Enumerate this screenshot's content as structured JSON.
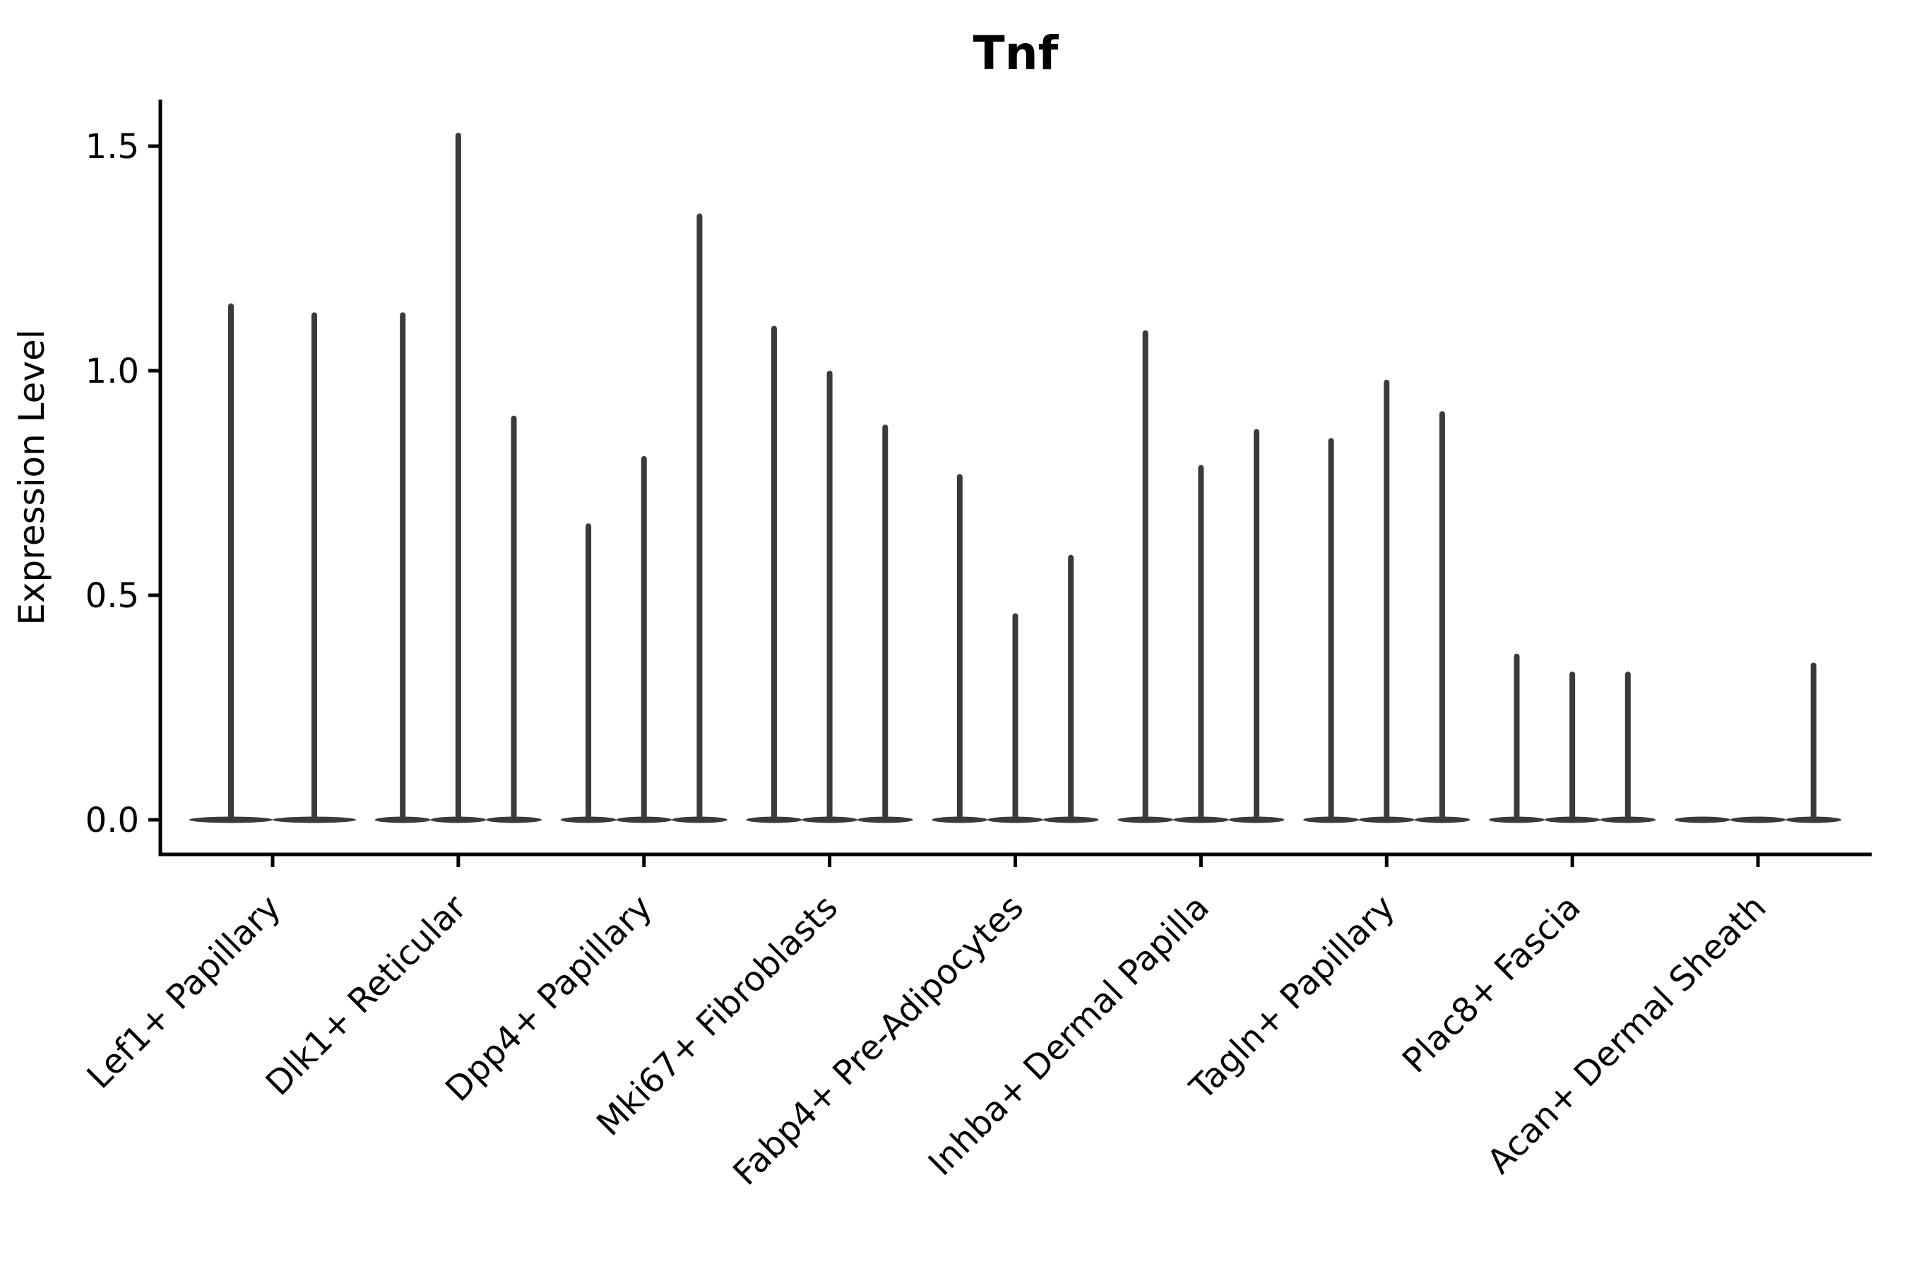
{
  "title": "Tnf",
  "colors": {
    "background": "#ffffff",
    "axis": "#000000",
    "violin": "#3a3a3a",
    "text": "#000000"
  },
  "chart_data": {
    "type": "violin",
    "title": "Tnf",
    "xlabel": "",
    "ylabel": "Expression Level",
    "ylim": [
      -0.08,
      1.6
    ],
    "ytick_values": [
      0,
      0.5,
      1.0,
      1.5
    ],
    "ytick_labels": [
      "0.0",
      "0.5",
      "1.0",
      "1.5"
    ],
    "grid": false,
    "legend_position": "none",
    "x_label_rotation_deg": 45,
    "categories": [
      "Lef1+ Papillary",
      "Dlk1+ Reticular",
      "Dpp4+ Papillary",
      "Mki67+ Fibroblasts",
      "Fabp4+ Pre-Adipocytes",
      "Inhba+ Dermal Papilla",
      "Tagln+ Papillary",
      "Plac8+ Fascia",
      "Acan+ Dermal Sheath"
    ],
    "violin_note": "Each category shows thin violins: a flat density base at expression 0 plus a narrow spike reaching the listed maximum expression value; 0 means a flat violin with no spike.",
    "violin_max_values": [
      [
        1.15,
        1.13
      ],
      [
        1.13,
        1.53,
        0.9
      ],
      [
        0.66,
        0.81,
        1.35
      ],
      [
        1.1,
        1.0,
        0.88
      ],
      [
        0.77,
        0.46,
        0.59
      ],
      [
        1.09,
        0.79,
        0.87
      ],
      [
        0.85,
        0.98,
        0.91
      ],
      [
        0.37,
        0.33,
        0.33
      ],
      [
        0,
        0,
        0.35
      ]
    ]
  }
}
